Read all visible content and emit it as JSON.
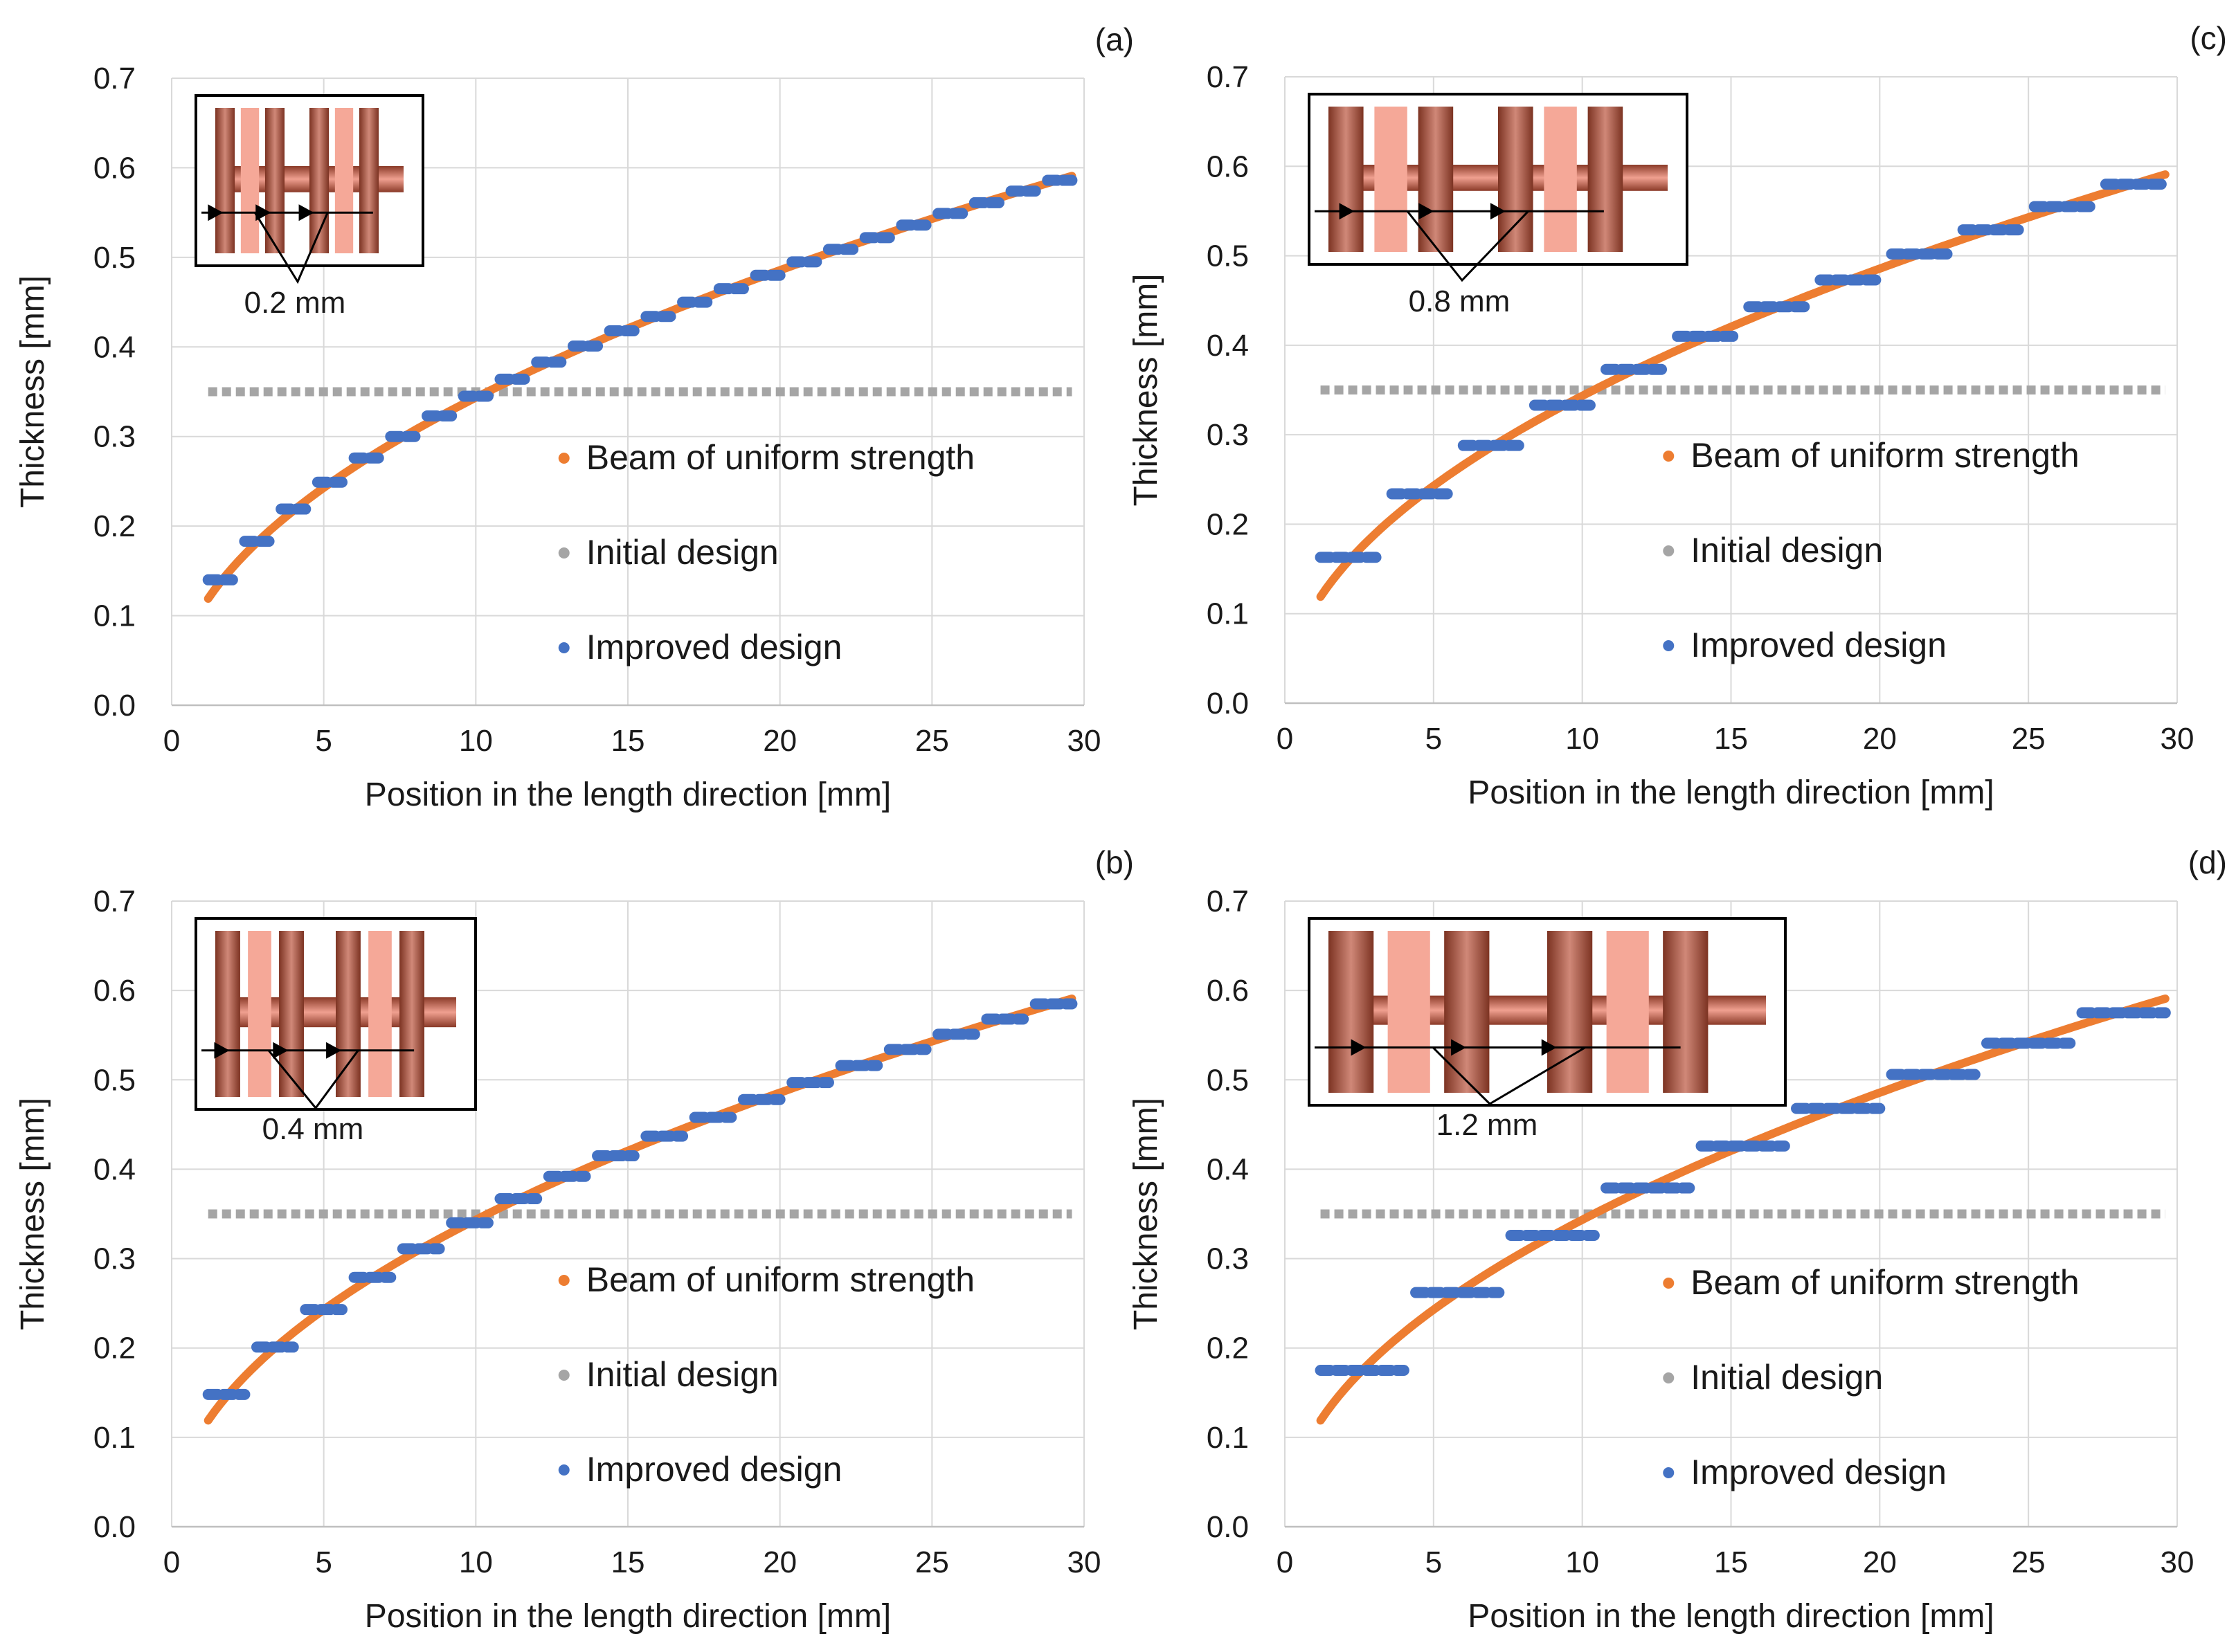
{
  "figure": {
    "colors": {
      "beam": "#ED7D31",
      "initial": "#A5A5A5",
      "improved": "#4472C4",
      "grid": "#D9D9D9",
      "axis": "#BFBFBF",
      "copper_dark": "#8A3A28",
      "copper_mid": "#C07060",
      "copper_light": "#F6A898"
    }
  },
  "chart_data": [
    {
      "panel": "(a)",
      "type": "line",
      "xlabel": "Position in the length direction [mm]",
      "ylabel": "Thickness [mm]",
      "xlim": [
        0,
        30
      ],
      "ylim": [
        0,
        0.7
      ],
      "xticks": [
        "0",
        "5",
        "10",
        "15",
        "20",
        "25",
        "30"
      ],
      "yticks": [
        "0.0",
        "0.1",
        "0.2",
        "0.3",
        "0.4",
        "0.5",
        "0.6",
        "0.7"
      ],
      "segment_width_mm": 0.2,
      "dimension_label": "0.2 mm",
      "legend": [
        "Beam of uniform strength",
        "Initial design",
        "Improved design"
      ],
      "series": [
        {
          "name": "Beam of uniform strength",
          "x_start": 1.2,
          "x_end": 29.6,
          "model": "t = 0.1086 * sqrt(x)"
        },
        {
          "name": "Initial design",
          "x_start": 1.2,
          "x_end": 29.6,
          "value": 0.35
        },
        {
          "name": "Improved design",
          "steps": [
            {
              "x": [
                1.2,
                2.0
              ],
              "y": 0.14
            },
            {
              "x": [
                2.4,
                3.2
              ],
              "y": 0.183
            },
            {
              "x": [
                3.6,
                4.4
              ],
              "y": 0.219
            },
            {
              "x": [
                4.8,
                5.6
              ],
              "y": 0.249
            },
            {
              "x": [
                6.0,
                6.8
              ],
              "y": 0.276
            },
            {
              "x": [
                7.2,
                8.0
              ],
              "y": 0.3
            },
            {
              "x": [
                8.4,
                9.2
              ],
              "y": 0.323
            },
            {
              "x": [
                9.6,
                10.4
              ],
              "y": 0.345
            },
            {
              "x": [
                10.8,
                11.6
              ],
              "y": 0.364
            },
            {
              "x": [
                12.0,
                12.8
              ],
              "y": 0.383
            },
            {
              "x": [
                13.2,
                14.0
              ],
              "y": 0.401
            },
            {
              "x": [
                14.4,
                15.2
              ],
              "y": 0.418
            },
            {
              "x": [
                15.6,
                16.4
              ],
              "y": 0.434
            },
            {
              "x": [
                16.8,
                17.6
              ],
              "y": 0.45
            },
            {
              "x": [
                18.0,
                18.8
              ],
              "y": 0.465
            },
            {
              "x": [
                19.2,
                20.0
              ],
              "y": 0.48
            },
            {
              "x": [
                20.4,
                21.2
              ],
              "y": 0.495
            },
            {
              "x": [
                21.6,
                22.4
              ],
              "y": 0.509
            },
            {
              "x": [
                22.8,
                23.6
              ],
              "y": 0.522
            },
            {
              "x": [
                24.0,
                24.8
              ],
              "y": 0.536
            },
            {
              "x": [
                25.2,
                26.0
              ],
              "y": 0.549
            },
            {
              "x": [
                26.4,
                27.2
              ],
              "y": 0.561
            },
            {
              "x": [
                27.6,
                28.4
              ],
              "y": 0.574
            },
            {
              "x": [
                28.8,
                29.6
              ],
              "y": 0.586
            }
          ]
        }
      ]
    },
    {
      "panel": "(c)",
      "type": "line",
      "xlabel": "Position in the length direction [mm]",
      "ylabel": "Thickness [mm]",
      "xlim": [
        0,
        30
      ],
      "ylim": [
        0,
        0.7
      ],
      "xticks": [
        "0",
        "5",
        "10",
        "15",
        "20",
        "25",
        "30"
      ],
      "yticks": [
        "0.0",
        "0.1",
        "0.2",
        "0.3",
        "0.4",
        "0.5",
        "0.6",
        "0.7"
      ],
      "segment_width_mm": 0.8,
      "dimension_label": "0.8 mm",
      "legend": [
        "Beam of uniform strength",
        "Initial design",
        "Improved design"
      ],
      "series": [
        {
          "name": "Beam of uniform strength",
          "x_start": 1.2,
          "x_end": 29.6,
          "model": "t = 0.1086 * sqrt(x)"
        },
        {
          "name": "Initial design",
          "x_start": 1.2,
          "x_end": 29.6,
          "value": 0.35
        },
        {
          "name": "Improved design",
          "steps": [
            {
              "x": [
                1.2,
                3.2
              ],
              "y": 0.163
            },
            {
              "x": [
                3.6,
                5.6
              ],
              "y": 0.234
            },
            {
              "x": [
                6.0,
                8.0
              ],
              "y": 0.288
            },
            {
              "x": [
                8.4,
                10.4
              ],
              "y": 0.333
            },
            {
              "x": [
                10.8,
                12.8
              ],
              "y": 0.373
            },
            {
              "x": [
                13.2,
                15.2
              ],
              "y": 0.41
            },
            {
              "x": [
                15.6,
                17.6
              ],
              "y": 0.443
            },
            {
              "x": [
                18.0,
                20.0
              ],
              "y": 0.473
            },
            {
              "x": [
                20.4,
                22.4
              ],
              "y": 0.502
            },
            {
              "x": [
                22.8,
                24.8
              ],
              "y": 0.529
            },
            {
              "x": [
                25.2,
                27.2
              ],
              "y": 0.555
            },
            {
              "x": [
                27.6,
                29.6
              ],
              "y": 0.58
            }
          ]
        }
      ]
    },
    {
      "panel": "(b)",
      "type": "line",
      "xlabel": "Position in the length direction [mm]",
      "ylabel": "Thickness [mm]",
      "xlim": [
        0,
        30
      ],
      "ylim": [
        0,
        0.7
      ],
      "xticks": [
        "0",
        "5",
        "10",
        "15",
        "20",
        "25",
        "30"
      ],
      "yticks": [
        "0.0",
        "0.1",
        "0.2",
        "0.3",
        "0.4",
        "0.5",
        "0.6",
        "0.7"
      ],
      "segment_width_mm": 0.4,
      "dimension_label": "0.4 mm",
      "legend": [
        "Beam of uniform strength",
        "Initial design",
        "Improved design"
      ],
      "series": [
        {
          "name": "Beam of uniform strength",
          "x_start": 1.2,
          "x_end": 29.6,
          "model": "t = 0.1086 * sqrt(x)"
        },
        {
          "name": "Initial design",
          "x_start": 1.2,
          "x_end": 29.6,
          "value": 0.35
        },
        {
          "name": "Improved design",
          "steps": [
            {
              "x": [
                1.2,
                2.4
              ],
              "y": 0.148
            },
            {
              "x": [
                2.8,
                4.0
              ],
              "y": 0.201
            },
            {
              "x": [
                4.4,
                5.6
              ],
              "y": 0.243
            },
            {
              "x": [
                6.0,
                7.2
              ],
              "y": 0.279
            },
            {
              "x": [
                7.6,
                8.8
              ],
              "y": 0.311
            },
            {
              "x": [
                9.2,
                10.4
              ],
              "y": 0.34
            },
            {
              "x": [
                10.8,
                12.0
              ],
              "y": 0.367
            },
            {
              "x": [
                12.4,
                13.6
              ],
              "y": 0.392
            },
            {
              "x": [
                14.0,
                15.2
              ],
              "y": 0.415
            },
            {
              "x": [
                15.6,
                16.8
              ],
              "y": 0.437
            },
            {
              "x": [
                17.2,
                18.4
              ],
              "y": 0.458
            },
            {
              "x": [
                18.8,
                20.0
              ],
              "y": 0.478
            },
            {
              "x": [
                20.4,
                21.6
              ],
              "y": 0.497
            },
            {
              "x": [
                22.0,
                23.2
              ],
              "y": 0.516
            },
            {
              "x": [
                23.6,
                24.8
              ],
              "y": 0.534
            },
            {
              "x": [
                25.2,
                26.4
              ],
              "y": 0.551
            },
            {
              "x": [
                26.8,
                28.0
              ],
              "y": 0.568
            },
            {
              "x": [
                28.4,
                29.6
              ],
              "y": 0.585
            }
          ]
        }
      ]
    },
    {
      "panel": "(d)",
      "type": "line",
      "xlabel": "Position in the length direction [mm]",
      "ylabel": "Thickness [mm]",
      "xlim": [
        0,
        30
      ],
      "ylim": [
        0,
        0.7
      ],
      "xticks": [
        "0",
        "5",
        "10",
        "15",
        "20",
        "25",
        "30"
      ],
      "yticks": [
        "0.0",
        "0.1",
        "0.2",
        "0.3",
        "0.4",
        "0.5",
        "0.6",
        "0.7"
      ],
      "segment_width_mm": 1.2,
      "dimension_label": "1.2 mm",
      "legend": [
        "Beam of uniform strength",
        "Initial design",
        "Improved design"
      ],
      "series": [
        {
          "name": "Beam of uniform strength",
          "x_start": 1.2,
          "x_end": 29.6,
          "model": "t = 0.1086 * sqrt(x)"
        },
        {
          "name": "Initial design",
          "x_start": 1.2,
          "x_end": 29.6,
          "value": 0.35
        },
        {
          "name": "Improved design",
          "steps": [
            {
              "x": [
                1.2,
                4.0
              ],
              "y": 0.175
            },
            {
              "x": [
                4.4,
                7.2
              ],
              "y": 0.262
            },
            {
              "x": [
                7.6,
                10.4
              ],
              "y": 0.326
            },
            {
              "x": [
                10.8,
                13.6
              ],
              "y": 0.379
            },
            {
              "x": [
                14.0,
                16.8
              ],
              "y": 0.426
            },
            {
              "x": [
                17.2,
                20.0
              ],
              "y": 0.468
            },
            {
              "x": [
                20.4,
                23.2
              ],
              "y": 0.506
            },
            {
              "x": [
                23.6,
                26.4
              ],
              "y": 0.541
            },
            {
              "x": [
                26.8,
                29.6
              ],
              "y": 0.575
            }
          ]
        }
      ]
    }
  ]
}
